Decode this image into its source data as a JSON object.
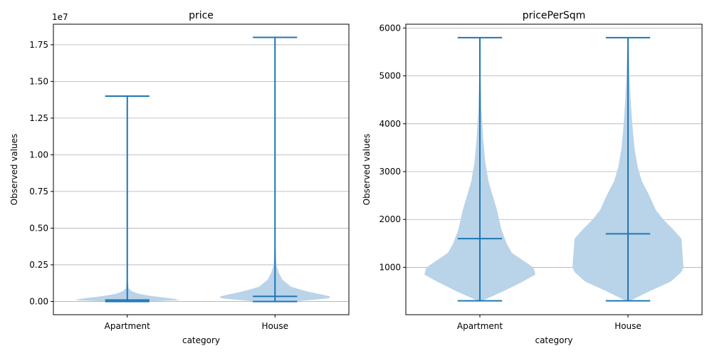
{
  "chart_data": [
    {
      "type": "violin",
      "title": "price",
      "xlabel": "category",
      "ylabel": "Observed values",
      "y_offset_label": "1e7",
      "y_multiplier": 10000000,
      "ylim": [
        -900000,
        18900000
      ],
      "y_ticks": [
        0,
        2500000,
        5000000,
        7500000,
        10000000,
        12500000,
        15000000,
        17500000
      ],
      "y_tick_labels": [
        "0.00",
        "0.25",
        "0.50",
        "0.75",
        "1.00",
        "1.25",
        "1.50",
        "1.75"
      ],
      "grid": "y",
      "categories": [
        "Apartment",
        "House"
      ],
      "series": [
        {
          "min": 0,
          "max": 14000000,
          "median": 100000,
          "density": [
            [
              0,
              0.2
            ],
            [
              30000,
              0.45
            ],
            [
              100000,
              0.62
            ],
            [
              200000,
              0.5
            ],
            [
              350000,
              0.3
            ],
            [
              500000,
              0.14
            ],
            [
              700000,
              0.05
            ],
            [
              900000,
              0.015
            ],
            [
              1500000,
              0.005
            ],
            [
              14000000,
              0.001
            ]
          ]
        },
        {
          "min": 0,
          "max": 18000000,
          "median": 350000,
          "density": [
            [
              0,
              0.2
            ],
            [
              100000,
              0.4
            ],
            [
              200000,
              0.6
            ],
            [
              350000,
              0.62
            ],
            [
              500000,
              0.5
            ],
            [
              700000,
              0.35
            ],
            [
              1000000,
              0.18
            ],
            [
              1500000,
              0.08
            ],
            [
              2000000,
              0.04
            ],
            [
              2500000,
              0.015
            ],
            [
              4000000,
              0.005
            ],
            [
              18000000,
              0.001
            ]
          ]
        }
      ]
    },
    {
      "type": "violin",
      "title": "pricePerSqm",
      "xlabel": "category",
      "ylabel": "Observed values",
      "ylim": [
        10,
        6080
      ],
      "y_ticks": [
        1000,
        2000,
        3000,
        4000,
        5000,
        6000
      ],
      "y_tick_labels": [
        "1000",
        "2000",
        "3000",
        "4000",
        "5000",
        "6000"
      ],
      "grid": "y",
      "categories": [
        "Apartment",
        "House"
      ],
      "series": [
        {
          "min": 300,
          "max": 5800,
          "median": 1600,
          "density": [
            [
              300,
              0.02
            ],
            [
              500,
              0.22
            ],
            [
              700,
              0.4
            ],
            [
              850,
              0.52
            ],
            [
              1000,
              0.5
            ],
            [
              1150,
              0.4
            ],
            [
              1300,
              0.3
            ],
            [
              1500,
              0.25
            ],
            [
              1800,
              0.2
            ],
            [
              2200,
              0.16
            ],
            [
              2500,
              0.12
            ],
            [
              2800,
              0.08
            ],
            [
              3200,
              0.05
            ],
            [
              3700,
              0.03
            ],
            [
              4300,
              0.015
            ],
            [
              5000,
              0.006
            ],
            [
              5800,
              0.003
            ]
          ]
        },
        {
          "min": 300,
          "max": 5800,
          "median": 1700,
          "density": [
            [
              300,
              0.02
            ],
            [
              500,
              0.2
            ],
            [
              700,
              0.4
            ],
            [
              900,
              0.5
            ],
            [
              1000,
              0.52
            ],
            [
              1300,
              0.51
            ],
            [
              1600,
              0.5
            ],
            [
              1800,
              0.42
            ],
            [
              2000,
              0.33
            ],
            [
              2200,
              0.26
            ],
            [
              2500,
              0.2
            ],
            [
              2800,
              0.13
            ],
            [
              3100,
              0.09
            ],
            [
              3500,
              0.06
            ],
            [
              4000,
              0.04
            ],
            [
              4500,
              0.025
            ],
            [
              5000,
              0.015
            ],
            [
              5500,
              0.008
            ],
            [
              5800,
              0.003
            ]
          ]
        }
      ]
    }
  ]
}
